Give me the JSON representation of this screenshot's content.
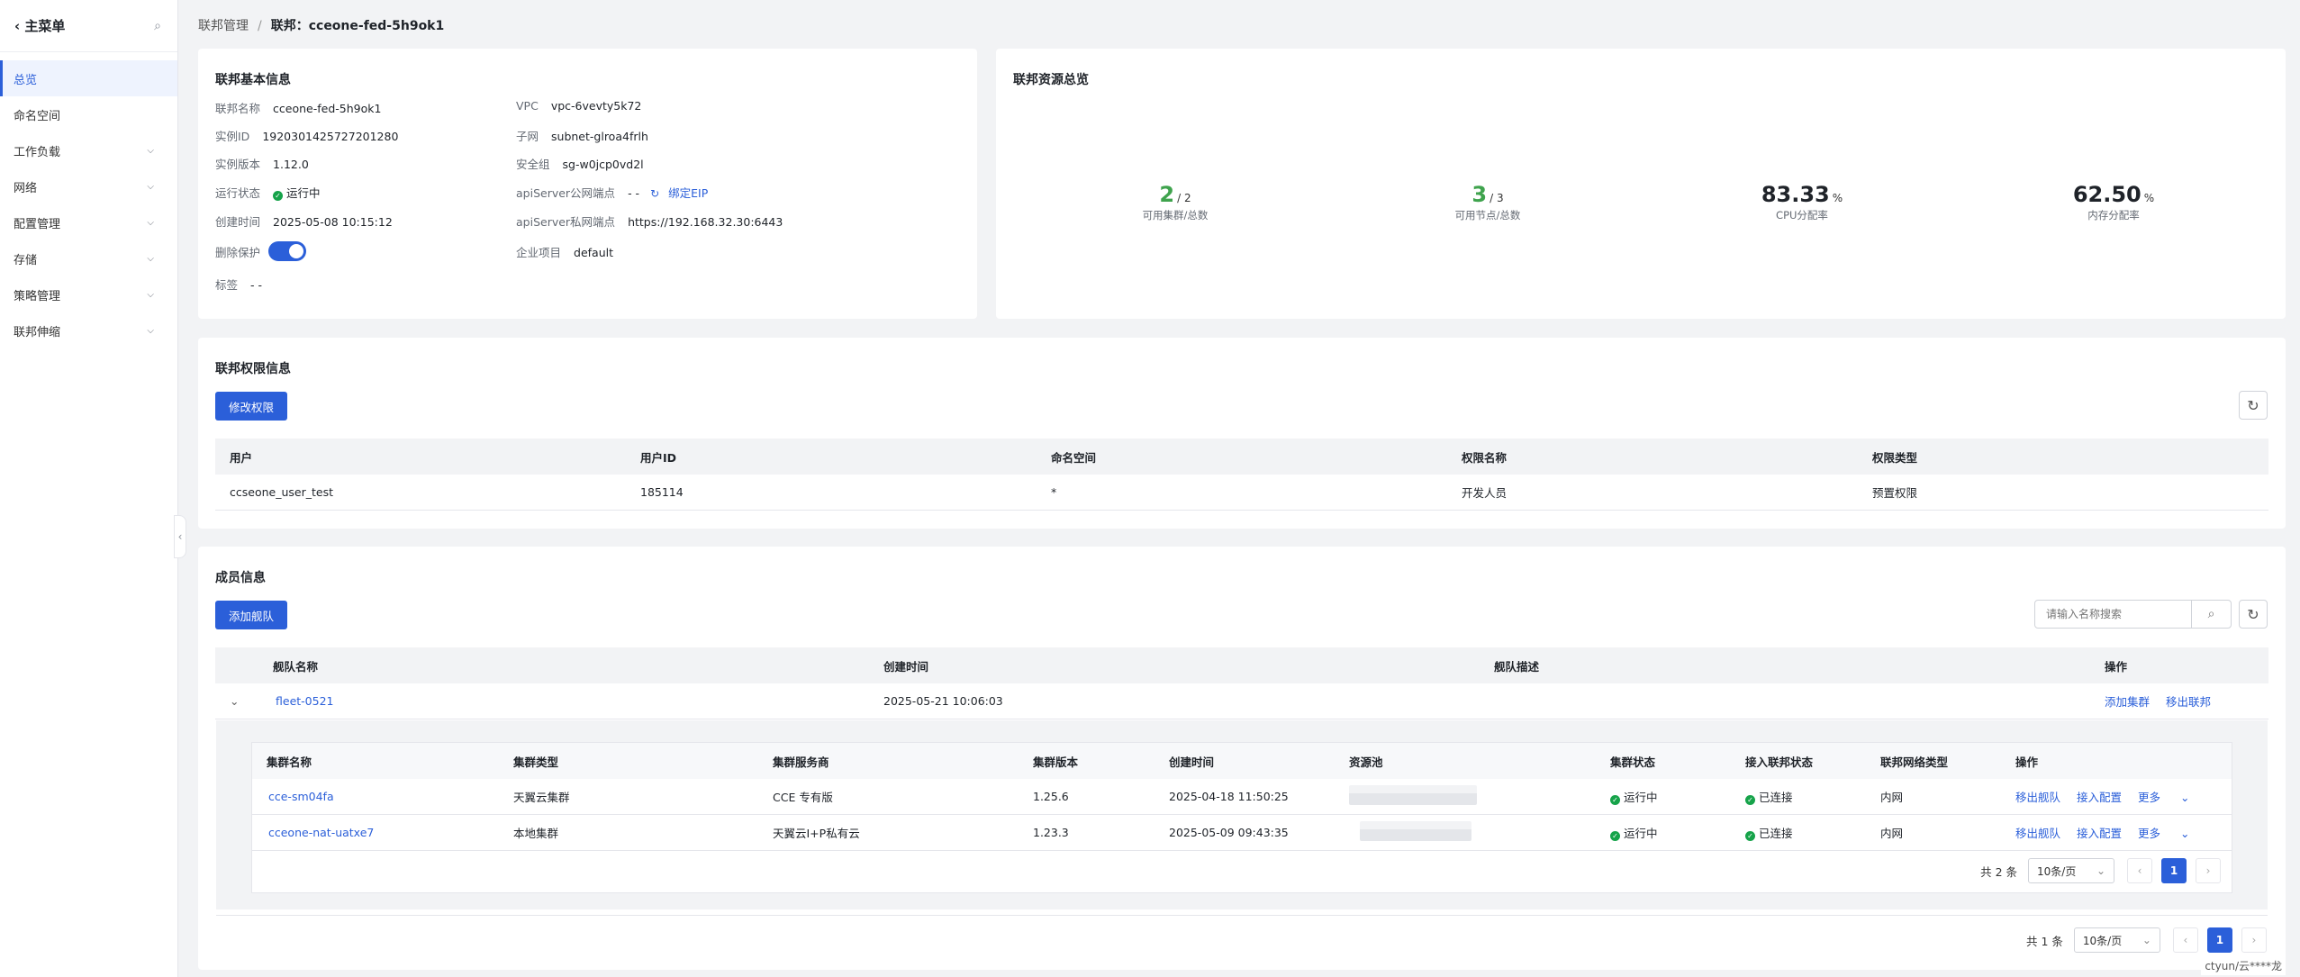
{
  "sidebar": {
    "title": "主菜单",
    "items": [
      {
        "label": "总览",
        "active": true,
        "expandable": false
      },
      {
        "label": "命名空间",
        "active": false,
        "expandable": false
      },
      {
        "label": "工作负载",
        "active": false,
        "expandable": true
      },
      {
        "label": "网络",
        "active": false,
        "expandable": true
      },
      {
        "label": "配置管理",
        "active": false,
        "expandable": true
      },
      {
        "label": "存储",
        "active": false,
        "expandable": true
      },
      {
        "label": "策略管理",
        "active": false,
        "expandable": true
      },
      {
        "label": "联邦伸缩",
        "active": false,
        "expandable": true
      }
    ]
  },
  "breadcrumb": {
    "parent": "联邦管理",
    "current": "联邦：cceone-fed-5h9ok1"
  },
  "basic": {
    "title": "联邦基本信息",
    "name_k": "联邦名称",
    "name_v": "cceone-fed-5h9ok1",
    "id_k": "实例ID",
    "id_v": "1920301425727201280",
    "ver_k": "实例版本",
    "ver_v": "1.12.0",
    "status_k": "运行状态",
    "status_v": "运行中",
    "ctime_k": "创建时间",
    "ctime_v": "2025-05-08 10:15:12",
    "protect_k": "删除保护",
    "tag_k": "标签",
    "tag_v": "- -",
    "vpc_k": "VPC",
    "vpc_v": "vpc-6vevty5k72",
    "subnet_k": "子网",
    "subnet_v": "subnet-glroa4frlh",
    "sg_k": "安全组",
    "sg_v": "sg-w0jcp0vd2l",
    "pub_k": "apiServer公网端点",
    "pub_v": "- -",
    "pub_link": "绑定EIP",
    "priv_k": "apiServer私网端点",
    "priv_v": "https://192.168.32.30:6443",
    "proj_k": "企业项目",
    "proj_v": "default"
  },
  "resource": {
    "title": "联邦资源总览",
    "stats": [
      {
        "num": "2",
        "unit": "/ 2",
        "label": "可用集群/总数"
      },
      {
        "num": "3",
        "unit": "/ 3",
        "label": "可用节点/总数"
      },
      {
        "num": "83.33",
        "unit": "%",
        "label": "CPU分配率"
      },
      {
        "num": "62.50",
        "unit": "%",
        "label": "内存分配率"
      }
    ]
  },
  "permission": {
    "title": "联邦权限信息",
    "edit_btn": "修改权限",
    "headers": [
      "用户",
      "用户ID",
      "命名空间",
      "权限名称",
      "权限类型"
    ],
    "rows": [
      [
        "ccseone_user_test",
        "185114",
        "*",
        "开发人员",
        "预置权限"
      ]
    ]
  },
  "members": {
    "title": "成员信息",
    "add_btn": "添加舰队",
    "search_placeholder": "请输入名称搜索",
    "headers": [
      "舰队名称",
      "创建时间",
      "舰队描述",
      "操作"
    ],
    "fleet": {
      "name": "fleet-0521",
      "ctime": "2025-05-21 10:06:03",
      "desc": "",
      "op1": "添加集群",
      "op2": "移出联邦"
    },
    "sub_headers": [
      "集群名称",
      "集群类型",
      "集群服务商",
      "集群版本",
      "创建时间",
      "资源池",
      "集群状态",
      "接入联邦状态",
      "联邦网络类型",
      "操作"
    ],
    "clusters": [
      {
        "name": "cce-sm04fa",
        "type": "天翼云集群",
        "vendor": "CCE 专有版",
        "ver": "1.25.6",
        "ctime": "2025-04-18 11:50:25",
        "status": "运行中",
        "join": "已连接",
        "net": "内网",
        "op1": "移出舰队",
        "op2": "接入配置",
        "op3": "更多"
      },
      {
        "name": "cceone-nat-uatxe7",
        "type": "本地集群",
        "vendor": "天翼云I+P私有云",
        "ver": "1.23.3",
        "ctime": "2025-05-09 09:43:35",
        "status": "运行中",
        "join": "已连接",
        "net": "内网",
        "op1": "移出舰队",
        "op2": "接入配置",
        "op3": "更多"
      }
    ],
    "sub_pager": {
      "total": "共 2 条",
      "size": "10条/页",
      "page": "1"
    },
    "pager": {
      "total": "共 1 条",
      "size": "10条/页",
      "page": "1"
    }
  },
  "footer_user": "ctyun/云****龙"
}
